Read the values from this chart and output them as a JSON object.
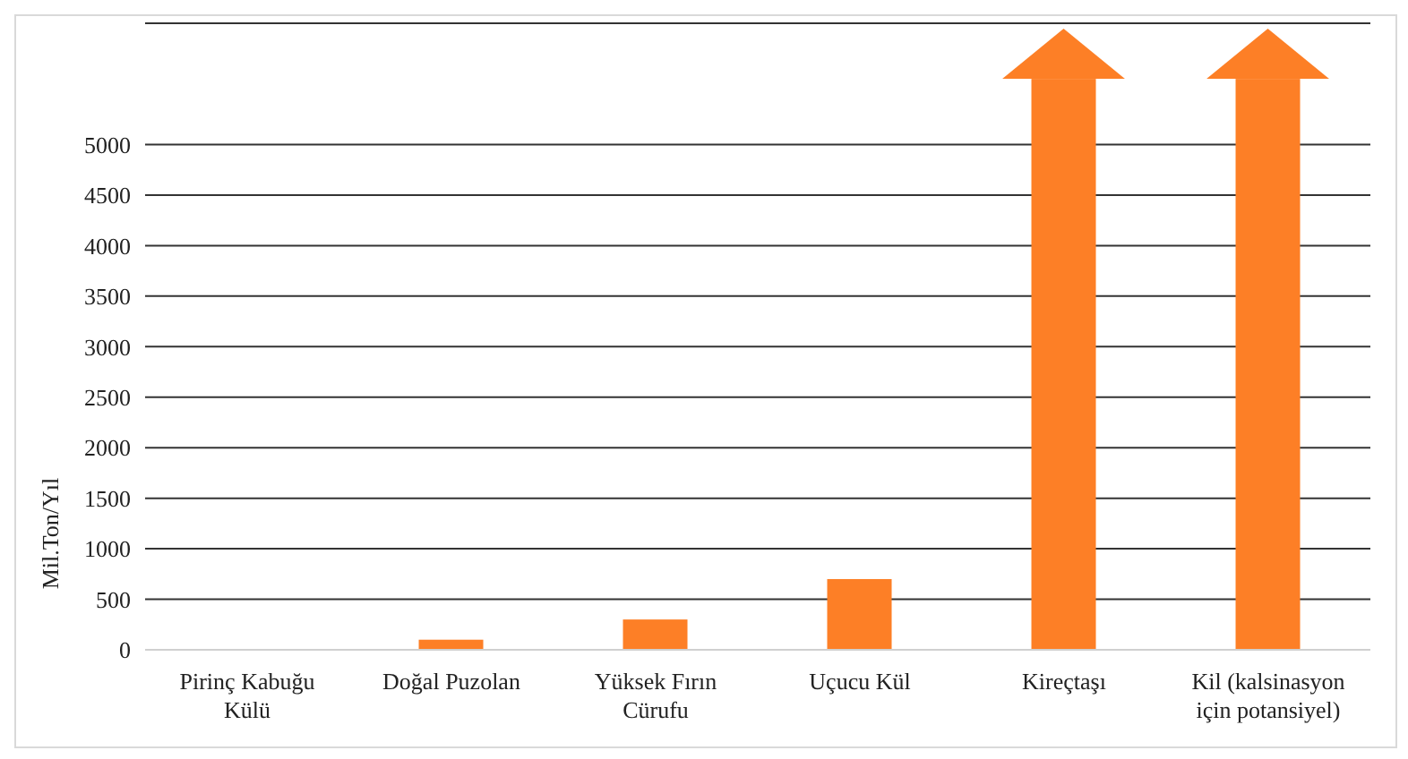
{
  "chart_data": {
    "type": "bar",
    "ylabel": "Mil.Ton/Yıl",
    "categories": [
      "Pirinç Kabuğu Külü",
      "Doğal Puzolan",
      "Yüksek Fırın Cürufu",
      "Uçucu Kül",
      "Kireçtaşı",
      "Kil (kalsinasyon için potansiyel)"
    ],
    "values": [
      0,
      100,
      300,
      700,
      5650,
      5650
    ],
    "color": "#fd7f26",
    "ylim": [
      0,
      6200
    ],
    "yticks": [
      0,
      500,
      1000,
      1500,
      2000,
      2500,
      3000,
      3500,
      4000,
      4500,
      5000
    ],
    "grid": "y"
  }
}
